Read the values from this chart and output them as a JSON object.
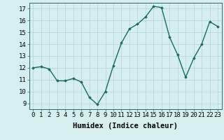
{
  "x": [
    0,
    1,
    2,
    3,
    4,
    5,
    6,
    7,
    8,
    9,
    10,
    11,
    12,
    13,
    14,
    15,
    16,
    17,
    18,
    19,
    20,
    21,
    22,
    23
  ],
  "y": [
    12.0,
    12.1,
    11.9,
    10.9,
    10.9,
    11.1,
    10.8,
    9.5,
    8.9,
    10.0,
    12.2,
    14.1,
    15.3,
    15.7,
    16.3,
    17.2,
    17.1,
    14.6,
    13.1,
    11.2,
    12.8,
    14.0,
    15.9,
    15.5
  ],
  "line_color": "#1a6b5a",
  "marker": "D",
  "markersize": 1.8,
  "linewidth": 1.0,
  "xlabel": "Humidex (Indice chaleur)",
  "ylabel_ticks": [
    9,
    10,
    11,
    12,
    13,
    14,
    15,
    16,
    17
  ],
  "ylim": [
    8.5,
    17.5
  ],
  "xlim": [
    -0.5,
    23.5
  ],
  "bg_color": "#d6efee",
  "grid_color": "#b8d8d6",
  "xlabel_fontsize": 7.5,
  "tick_fontsize": 6.5
}
